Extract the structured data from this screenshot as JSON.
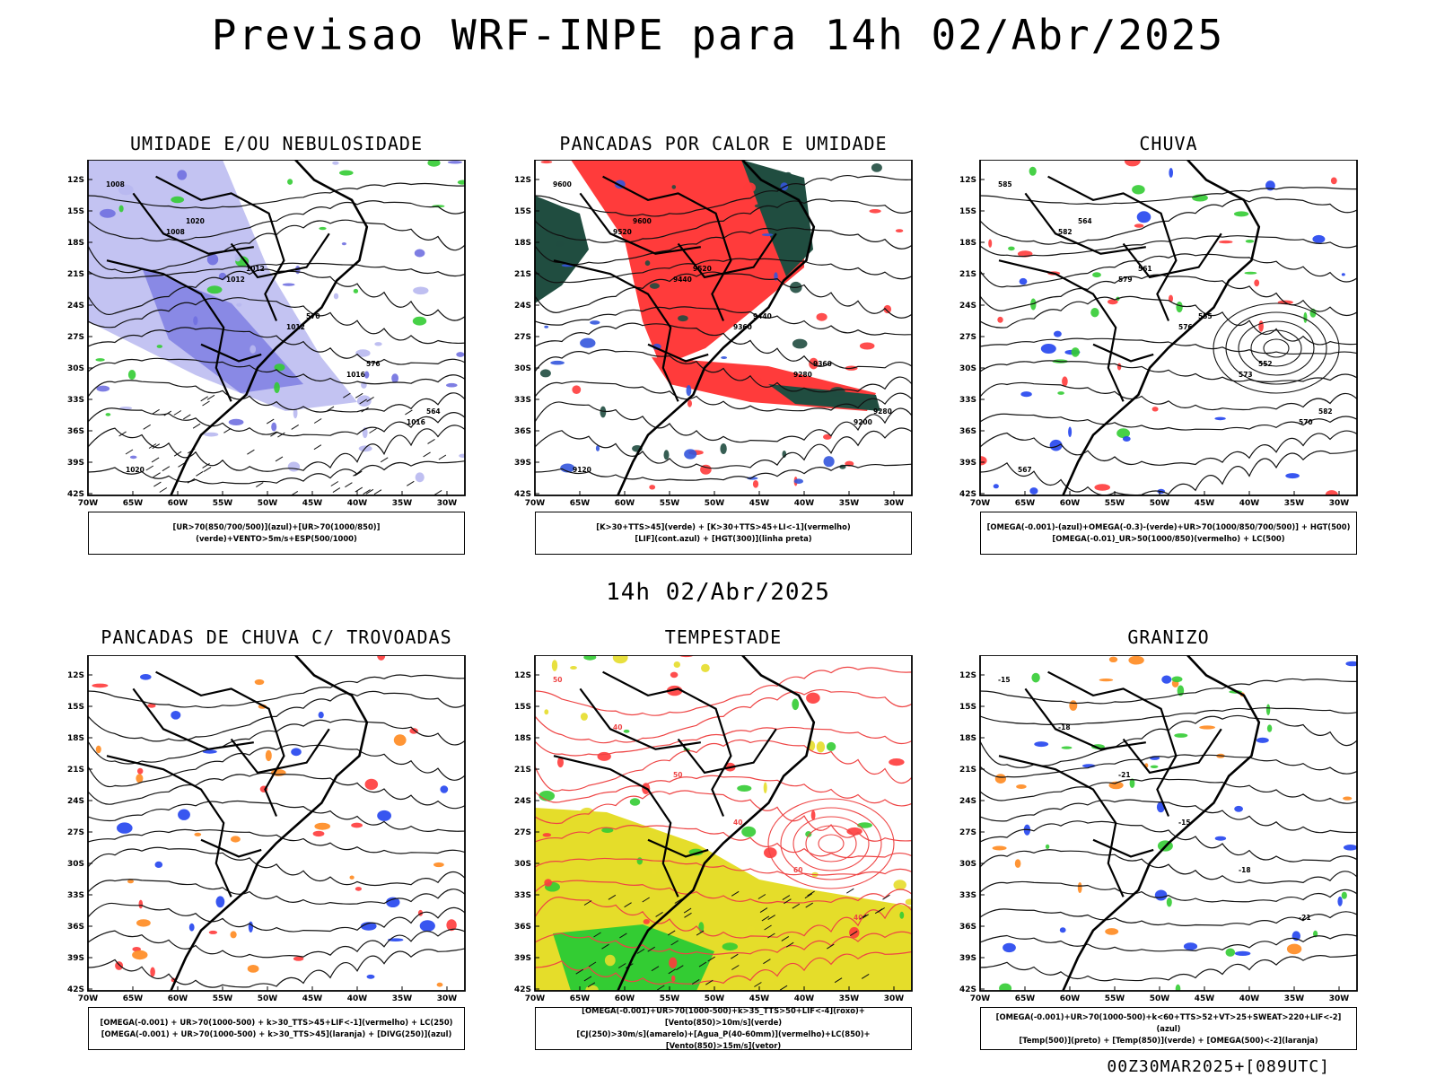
{
  "header": {
    "title": "Previsao WRF-INPE  para 14h 02/Abr/2025"
  },
  "middle_title": "14h 02/Abr/2025",
  "footer": {
    "run": "00Z30MAR2025+[089UTC]"
  },
  "axes": {
    "lat_labels": [
      "12S",
      "15S",
      "18S",
      "21S",
      "24S",
      "27S",
      "30S",
      "33S",
      "36S",
      "39S",
      "42S"
    ],
    "lon_labels": [
      "70W",
      "65W",
      "60W",
      "55W",
      "50W",
      "45W",
      "40W",
      "35W",
      "30W"
    ]
  },
  "panels": [
    {
      "id": "umidade",
      "title": "UMIDADE E/OU NEBULOSIDADE",
      "legend": [
        "[UR>70(850/700/500)](azul)+[UR>70(1000/850)](verde)+VENTO>5m/s+ESP(500/1000)"
      ],
      "contour_labels": [
        "1008",
        "1008",
        "1012",
        "1012",
        "1016",
        "1016",
        "1020",
        "1020",
        "1012",
        "570",
        "576",
        "564"
      ]
    },
    {
      "id": "pancadas-calor",
      "title": "PANCADAS POR CALOR E UMIDADE",
      "legend": [
        "[K>30+TTS>45](verde) + [K>30+TTS>45+LI<-1](vermelho)",
        "[LIF](cont.azul) + [HGT(300)](linha preta)"
      ],
      "contour_labels": [
        "9600",
        "9520",
        "9440",
        "9360",
        "9280",
        "9200",
        "9120",
        "9600",
        "9520",
        "9440",
        "9360",
        "9280"
      ]
    },
    {
      "id": "chuva",
      "title": "CHUVA",
      "legend": [
        "[OMEGA(-0.001)-(azul)+OMEGA(-0.3)-(verde)+UR>70(1000/850/700/500)] + HGT(500)",
        "[OMEGA(-0.01)_UR>50(1000/850)(vermelho) + LC(500)"
      ],
      "contour_labels": [
        "585",
        "582",
        "579",
        "576",
        "573",
        "570",
        "567",
        "564",
        "561",
        "555",
        "552",
        "582"
      ]
    },
    {
      "id": "pancadas-trovoadas",
      "title": "PANCADAS DE CHUVA C/ TROVOADAS",
      "legend": [
        "[OMEGA(-0.001) + UR>70(1000-500) + k>30_TTS>45+LIF<-1](vermelho) + LC(250)",
        "[OMEGA(-0.001) + UR>70(1000-500) + k>30_TTS>45](laranja) + [DIVG(250)](azul)"
      ],
      "contour_labels": []
    },
    {
      "id": "tempestade",
      "title": "TEMPESTADE",
      "legend": [
        "[OMEGA(-0.001)+UR>70(1000-500)+k>35_TTS>50+LIF<-4](roxo)+[Vento(850)>10m/s](verde)",
        "[CJ(250)>30m/s](amarelo)+[Agua_P(40-60mm)](vermelho)+LC(850)+[Vento(850)>15m/s](vetor)"
      ],
      "contour_labels": [
        "50",
        "40",
        "50",
        "40",
        "60",
        "40"
      ]
    },
    {
      "id": "granizo",
      "title": "GRANIZO",
      "legend": [
        "[OMEGA(-0.001)+UR>70(1000-500)+k<60+TTS>52+VT>25+SWEAT>220+LIF<-2](azul)",
        "[Temp(500)](preto) + [Temp(850)](verde) + [OMEGA(500)<-2](laranja)"
      ],
      "contour_labels": [
        "-15",
        "-18",
        "-21",
        "-15",
        "-18",
        "-21"
      ]
    }
  ]
}
